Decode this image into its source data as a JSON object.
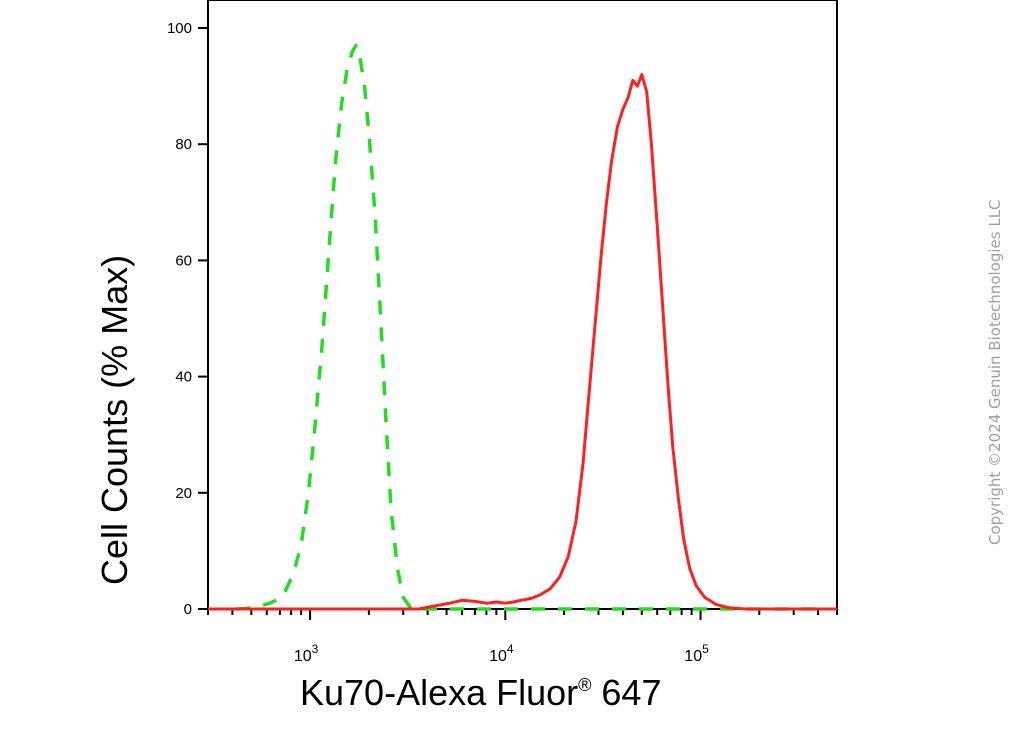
{
  "chart_data": {
    "type": "line",
    "xscale": "log",
    "xlim": [
      300,
      500000
    ],
    "ylim": [
      0,
      105
    ],
    "yticks": [
      0,
      20,
      40,
      60,
      80,
      100
    ],
    "xticks": [
      1000,
      10000,
      100000
    ],
    "xtick_labels": [
      {
        "base": "10",
        "exp": "3"
      },
      {
        "base": "10",
        "exp": "4"
      },
      {
        "base": "10",
        "exp": "5"
      }
    ],
    "ylabel": "Cell Counts (% Max)",
    "xlabel_main": "Ku70-Alexa Fluor",
    "xlabel_sup": "®",
    "xlabel_tail": " 647",
    "series": [
      {
        "color": "#22dd22",
        "style": "dashed",
        "points": [
          [
            420,
            0
          ],
          [
            520,
            0.2
          ],
          [
            620,
            1
          ],
          [
            720,
            2
          ],
          [
            820,
            6
          ],
          [
            900,
            11
          ],
          [
            980,
            20
          ],
          [
            1050,
            30
          ],
          [
            1150,
            45
          ],
          [
            1250,
            62
          ],
          [
            1350,
            77
          ],
          [
            1450,
            87
          ],
          [
            1550,
            93
          ],
          [
            1650,
            96
          ],
          [
            1720,
            97
          ],
          [
            1800,
            95
          ],
          [
            1900,
            90
          ],
          [
            2000,
            82
          ],
          [
            2150,
            68
          ],
          [
            2300,
            50
          ],
          [
            2450,
            32
          ],
          [
            2600,
            17
          ],
          [
            2800,
            7
          ],
          [
            3000,
            2
          ],
          [
            3300,
            0
          ],
          [
            3600,
            0
          ],
          [
            4200,
            0
          ],
          [
            6000,
            0
          ],
          [
            9000,
            0
          ],
          [
            14000,
            0
          ],
          [
            20000,
            0
          ],
          [
            30000,
            0
          ],
          [
            45000,
            0
          ],
          [
            70000,
            0
          ],
          [
            100000,
            0
          ],
          [
            200000,
            0
          ],
          [
            420000,
            0
          ]
        ]
      },
      {
        "color": "#ff2020",
        "style": "solid",
        "points": [
          [
            300,
            0
          ],
          [
            3000,
            0
          ],
          [
            3600,
            0
          ],
          [
            4300,
            0.5
          ],
          [
            5200,
            1
          ],
          [
            6000,
            1.5
          ],
          [
            7000,
            1.3
          ],
          [
            8000,
            1
          ],
          [
            9000,
            1.2
          ],
          [
            10000,
            1
          ],
          [
            11000,
            1.2
          ],
          [
            12000,
            1.5
          ],
          [
            13500,
            1.8
          ],
          [
            15000,
            2.4
          ],
          [
            17000,
            3.5
          ],
          [
            19000,
            5.5
          ],
          [
            21000,
            9
          ],
          [
            23000,
            15
          ],
          [
            25000,
            25
          ],
          [
            27000,
            38
          ],
          [
            29000,
            50
          ],
          [
            31000,
            61
          ],
          [
            33000,
            70
          ],
          [
            35000,
            77
          ],
          [
            37500,
            83
          ],
          [
            40000,
            86
          ],
          [
            42500,
            88
          ],
          [
            45000,
            91
          ],
          [
            47500,
            90
          ],
          [
            50000,
            92
          ],
          [
            53000,
            89
          ],
          [
            56000,
            80
          ],
          [
            60000,
            66
          ],
          [
            64000,
            52
          ],
          [
            68000,
            39
          ],
          [
            72000,
            28
          ],
          [
            77000,
            19
          ],
          [
            82000,
            12
          ],
          [
            88000,
            7
          ],
          [
            95000,
            4
          ],
          [
            105000,
            2
          ],
          [
            120000,
            0.8
          ],
          [
            140000,
            0.2
          ],
          [
            170000,
            0
          ],
          [
            250000,
            0
          ],
          [
            500000,
            0
          ]
        ]
      }
    ]
  },
  "watermark": "Copyright ©2024 Genuin Biotechnologies LLC"
}
